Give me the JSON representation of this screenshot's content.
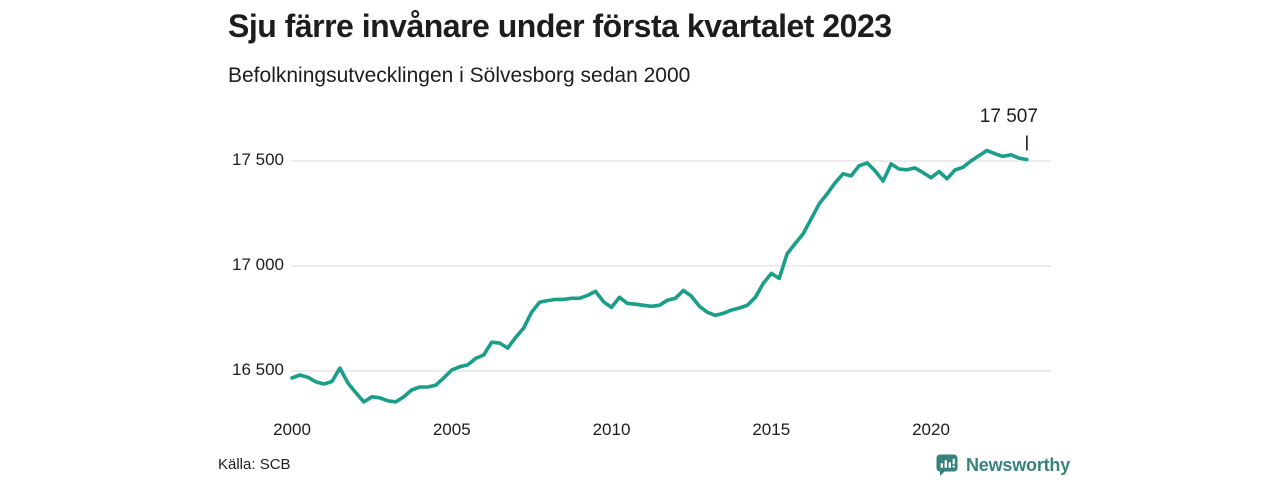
{
  "header": {
    "title": "Sju färre invånare under första kvartalet 2023",
    "subtitle": "Befolkningsutvecklingen i Sölvesborg sedan 2000"
  },
  "footer": {
    "source": "Källa: SCB",
    "brand": "Newsworthy"
  },
  "icons": {
    "brand_icon": "newsworthy-speech-bubble-bar-chart-icon"
  },
  "colors": {
    "line": "#1A9E8A",
    "brand": "#35837C",
    "grid": "#E0E0E0",
    "text": "#1D1D1B"
  },
  "chart_data": {
    "type": "line",
    "title": "Sju färre invånare under första kvartalet 2023",
    "subtitle": "Befolkningsutvecklingen i Sölvesborg sedan 2000",
    "frequency": "quarterly",
    "x_start": 2000,
    "x_step_years": 0.25,
    "series": [
      {
        "name": "Befolkningsutvecklingen i Sölvesborg",
        "values": [
          16467,
          16481,
          16470,
          16448,
          16438,
          16450,
          16514,
          16443,
          16396,
          16353,
          16377,
          16372,
          16358,
          16353,
          16377,
          16410,
          16424,
          16424,
          16433,
          16467,
          16505,
          16520,
          16529,
          16560,
          16576,
          16637,
          16633,
          16609,
          16660,
          16704,
          16780,
          16827,
          16835,
          16841,
          16841,
          16846,
          16846,
          16860,
          16879,
          16830,
          16803,
          16851,
          16822,
          16818,
          16813,
          16808,
          16813,
          16837,
          16846,
          16884,
          16856,
          16808,
          16780,
          16765,
          16775,
          16790,
          16800,
          16813,
          16851,
          16917,
          16965,
          16941,
          17059,
          17107,
          17154,
          17225,
          17296,
          17344,
          17396,
          17439,
          17429,
          17477,
          17491,
          17453,
          17405,
          17486,
          17462,
          17458,
          17467,
          17445,
          17420,
          17450,
          17415,
          17457,
          17470,
          17500,
          17525,
          17550,
          17535,
          17522,
          17530,
          17514,
          17507
        ]
      }
    ],
    "x_ticks": [
      2000,
      2005,
      2010,
      2015,
      2020
    ],
    "x_tick_labels": [
      "2000",
      "2005",
      "2010",
      "2015",
      "2020"
    ],
    "y_ticks": [
      16500,
      17000,
      17500
    ],
    "y_tick_labels": [
      "16 500",
      "17 000",
      "17 500"
    ],
    "ylim": [
      16300,
      17650
    ],
    "grid": "horizontal-only",
    "legend": "none",
    "annotation": {
      "label": "17 507",
      "value": 17507,
      "x": 2023.0
    }
  }
}
